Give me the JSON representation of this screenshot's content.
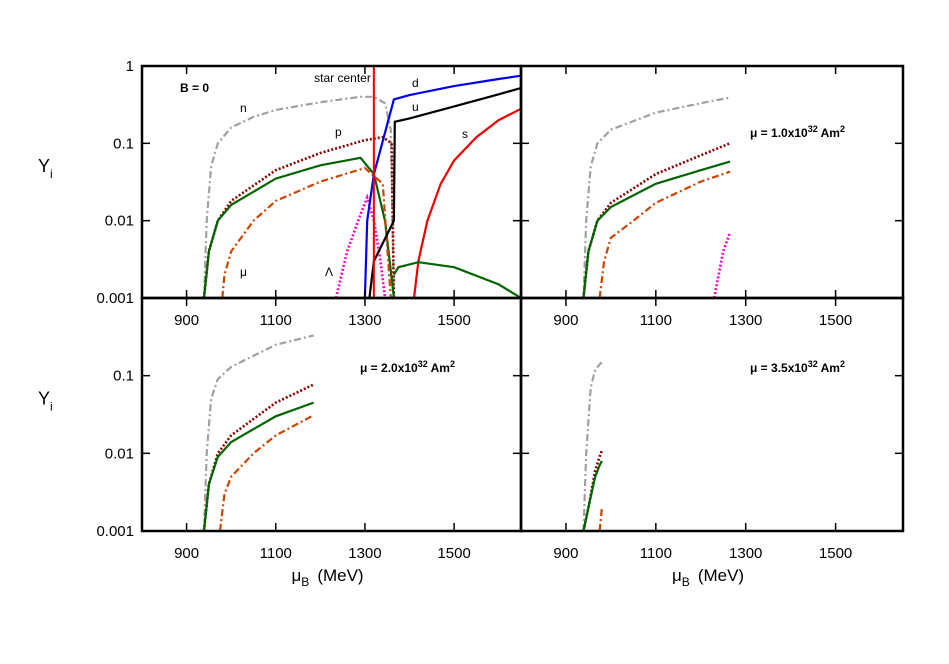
{
  "chart_data": [
    {
      "type": "line",
      "log_y": true,
      "xlim": [
        800,
        1650
      ],
      "ylim": [
        0.001,
        1
      ],
      "xticks": [
        900,
        1100,
        1300,
        1500
      ],
      "yticks": [
        0.001,
        0.01,
        0.1,
        1
      ],
      "ylabel": {
        "text": "Y",
        "sub": "i"
      },
      "annotation": {
        "parts": [
          "B = 0"
        ]
      },
      "vline": {
        "value": 1320,
        "label": "star center",
        "color": "#ee0000"
      },
      "series": [
        {
          "name": "n",
          "color": "#a0a0a0",
          "style": "dashdot",
          "x": [
            939,
            945,
            955,
            970,
            1000,
            1050,
            1100,
            1200,
            1290,
            1320,
            1345,
            1358,
            1365
          ],
          "values": [
            0.001,
            0.01,
            0.05,
            0.1,
            0.16,
            0.22,
            0.27,
            0.34,
            0.4,
            0.4,
            0.33,
            0.15,
            0.001
          ]
        },
        {
          "name": "p",
          "color": "#8b0000",
          "style": "dotted",
          "x": [
            939,
            950,
            970,
            1000,
            1100,
            1200,
            1300,
            1340,
            1360,
            1365
          ],
          "values": [
            0.001,
            0.004,
            0.01,
            0.018,
            0.045,
            0.075,
            0.11,
            0.12,
            0.1,
            0.001
          ]
        },
        {
          "color": "#006400",
          "style": "solid",
          "x": [
            939,
            950,
            970,
            1000,
            1100,
            1200,
            1290,
            1320,
            1345,
            1365
          ],
          "values": [
            0.001,
            0.004,
            0.01,
            0.016,
            0.035,
            0.052,
            0.065,
            0.04,
            0.01,
            0.001
          ]
        },
        {
          "name": "μ",
          "color": "#cc4400",
          "style": "dashdot",
          "x": [
            980,
            985,
            1000,
            1050,
            1100,
            1200,
            1300,
            1340,
            1358
          ],
          "values": [
            0.001,
            0.002,
            0.004,
            0.01,
            0.018,
            0.032,
            0.048,
            0.03,
            0.001
          ]
        },
        {
          "name": "Λ",
          "color": "#ff00cc",
          "style": "dotted",
          "x": [
            1235,
            1260,
            1290,
            1305,
            1320,
            1335,
            1345
          ],
          "values": [
            0.001,
            0.004,
            0.012,
            0.02,
            0.01,
            0.003,
            0.001
          ]
        },
        {
          "name": "d",
          "color": "#0000ee",
          "style": "solid",
          "x": [
            1300,
            1305,
            1320,
            1365,
            1400,
            1500,
            1600,
            1650
          ],
          "values": [
            0.001,
            0.01,
            0.04,
            0.37,
            0.42,
            0.55,
            0.68,
            0.75
          ]
        },
        {
          "name": "u",
          "color": "#000000",
          "style": "solid",
          "x": [
            1310,
            1320,
            1365,
            1367,
            1400,
            1500,
            1600,
            1650
          ],
          "values": [
            0.001,
            0.003,
            0.01,
            0.19,
            0.21,
            0.3,
            0.43,
            0.52
          ]
        },
        {
          "name": "s",
          "color": "#ee0000",
          "style": "solid",
          "x": [
            1410,
            1420,
            1440,
            1470,
            1500,
            1550,
            1600,
            1650
          ],
          "values": [
            0.001,
            0.003,
            0.01,
            0.03,
            0.06,
            0.12,
            0.2,
            0.28
          ]
        },
        {
          "color": "#006400",
          "style": "solid",
          "x": [
            1365,
            1375,
            1420,
            1500,
            1600,
            1650
          ],
          "values": [
            0.002,
            0.0025,
            0.0029,
            0.0025,
            0.0015,
            0.001
          ]
        }
      ]
    },
    {
      "type": "line",
      "log_y": true,
      "xlim": [
        800,
        1650
      ],
      "ylim": [
        0.001,
        1
      ],
      "xticks": [
        900,
        1100,
        1300,
        1500
      ],
      "yticks": [
        0.001,
        0.01,
        0.1,
        1
      ],
      "ytick_labels": false,
      "annotation": {
        "parts": [
          "μ = 1.0x10",
          "32",
          " Am",
          "2"
        ]
      },
      "series": [
        {
          "color": "#a0a0a0",
          "style": "dashdot",
          "x": [
            939,
            945,
            955,
            970,
            1000,
            1100,
            1200,
            1265
          ],
          "values": [
            0.001,
            0.01,
            0.05,
            0.1,
            0.15,
            0.25,
            0.33,
            0.39
          ]
        },
        {
          "color": "#8b0000",
          "style": "dotted",
          "x": [
            939,
            950,
            970,
            1000,
            1100,
            1200,
            1265
          ],
          "values": [
            0.001,
            0.004,
            0.01,
            0.017,
            0.04,
            0.07,
            0.1
          ]
        },
        {
          "color": "#006400",
          "style": "solid",
          "x": [
            939,
            950,
            970,
            1000,
            1100,
            1200,
            1265
          ],
          "values": [
            0.001,
            0.004,
            0.01,
            0.015,
            0.03,
            0.045,
            0.058
          ]
        },
        {
          "color": "#cc4400",
          "style": "dashdot",
          "x": [
            975,
            985,
            1000,
            1050,
            1100,
            1200,
            1265
          ],
          "values": [
            0.001,
            0.003,
            0.006,
            0.01,
            0.017,
            0.032,
            0.043
          ]
        },
        {
          "color": "#ff00cc",
          "style": "dotted",
          "x": [
            1230,
            1240,
            1250,
            1265
          ],
          "values": [
            0.001,
            0.002,
            0.004,
            0.007
          ]
        }
      ]
    },
    {
      "type": "line",
      "log_y": true,
      "xlim": [
        800,
        1650
      ],
      "ylim": [
        0.001,
        1
      ],
      "xticks": [
        900,
        1100,
        1300,
        1500
      ],
      "yticks": [
        0.001,
        0.01,
        0.1
      ],
      "ylabel": {
        "text": "Y",
        "sub": "i"
      },
      "xlabel": {
        "text": "μ",
        "sub": "B",
        "unit": "(MeV)"
      },
      "annotation": {
        "parts": [
          "μ = 2.0x10",
          "32",
          " Am",
          "2"
        ]
      },
      "series": [
        {
          "color": "#a0a0a0",
          "style": "dashdot",
          "x": [
            939,
            945,
            955,
            970,
            1000,
            1100,
            1185
          ],
          "values": [
            0.001,
            0.01,
            0.05,
            0.09,
            0.13,
            0.25,
            0.33
          ]
        },
        {
          "color": "#8b0000",
          "style": "dotted",
          "x": [
            939,
            950,
            970,
            1000,
            1100,
            1185
          ],
          "values": [
            0.001,
            0.004,
            0.01,
            0.017,
            0.045,
            0.077
          ]
        },
        {
          "color": "#006400",
          "style": "solid",
          "x": [
            939,
            950,
            970,
            1000,
            1100,
            1185
          ],
          "values": [
            0.001,
            0.004,
            0.009,
            0.014,
            0.03,
            0.045
          ]
        },
        {
          "color": "#cc4400",
          "style": "dashdot",
          "x": [
            975,
            985,
            1000,
            1050,
            1100,
            1185
          ],
          "values": [
            0.001,
            0.003,
            0.005,
            0.01,
            0.017,
            0.031
          ]
        }
      ]
    },
    {
      "type": "line",
      "log_y": true,
      "xlim": [
        800,
        1650
      ],
      "ylim": [
        0.001,
        1
      ],
      "xticks": [
        900,
        1100,
        1300,
        1500
      ],
      "yticks": [
        0.001,
        0.01,
        0.1
      ],
      "ytick_labels": false,
      "xlabel": {
        "text": "μ",
        "sub": "B",
        "unit": "(MeV)"
      },
      "annotation": {
        "parts": [
          "μ = 3.5x10",
          "32",
          " Am",
          "2"
        ]
      },
      "series": [
        {
          "color": "#a0a0a0",
          "style": "dashdot",
          "x": [
            939,
            945,
            955,
            965,
            980
          ],
          "values": [
            0.001,
            0.01,
            0.07,
            0.12,
            0.15
          ]
        },
        {
          "color": "#8b0000",
          "style": "dotted",
          "x": [
            939,
            950,
            965,
            975,
            980
          ],
          "values": [
            0.001,
            0.002,
            0.006,
            0.009,
            0.011
          ]
        },
        {
          "color": "#006400",
          "style": "solid",
          "x": [
            939,
            950,
            965,
            975,
            980
          ],
          "values": [
            0.001,
            0.002,
            0.005,
            0.007,
            0.008
          ]
        },
        {
          "color": "#cc4400",
          "style": "dashdot",
          "x": [
            975,
            978,
            980
          ],
          "values": [
            0.001,
            0.0015,
            0.002
          ]
        }
      ]
    }
  ]
}
